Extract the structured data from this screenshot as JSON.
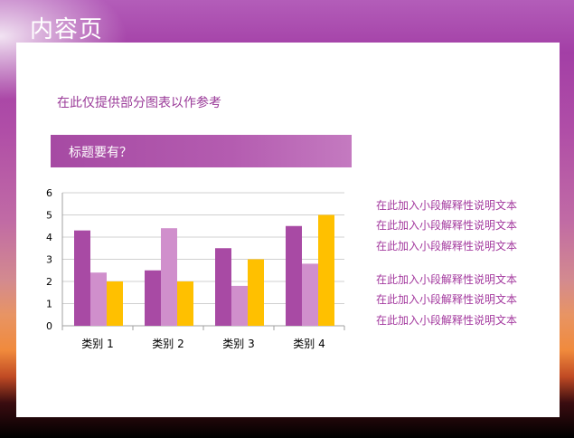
{
  "title": "内容页",
  "subtitle": "在此仅提供部分图表以作参考",
  "banner": "标题要有？",
  "notes": [
    "在此加入小段解释性说明文本",
    "在此加入小段解释性说明文本",
    "在此加入小段解释性说明文本",
    "在此加入小段解释性说明文本",
    "在此加入小段解释性说明文本",
    "在此加入小段解释性说明文本"
  ],
  "colors": {
    "series1": "#a84aa4",
    "series2": "#d08fcc",
    "series3": "#ffc000",
    "accent": "#9a3a98"
  },
  "chart_data": {
    "type": "bar",
    "categories": [
      "类别 1",
      "类别 2",
      "类别 3",
      "类别 4"
    ],
    "series": [
      {
        "values": [
          4.3,
          2.5,
          3.5,
          4.5
        ]
      },
      {
        "values": [
          2.4,
          4.4,
          1.8,
          2.8
        ]
      },
      {
        "values": [
          2.0,
          2.0,
          3.0,
          5.0
        ]
      }
    ],
    "yticks": [
      "0",
      "1",
      "2",
      "3",
      "4",
      "5",
      "6"
    ],
    "ylim": [
      0,
      6
    ],
    "grid": true,
    "legend": "none"
  }
}
